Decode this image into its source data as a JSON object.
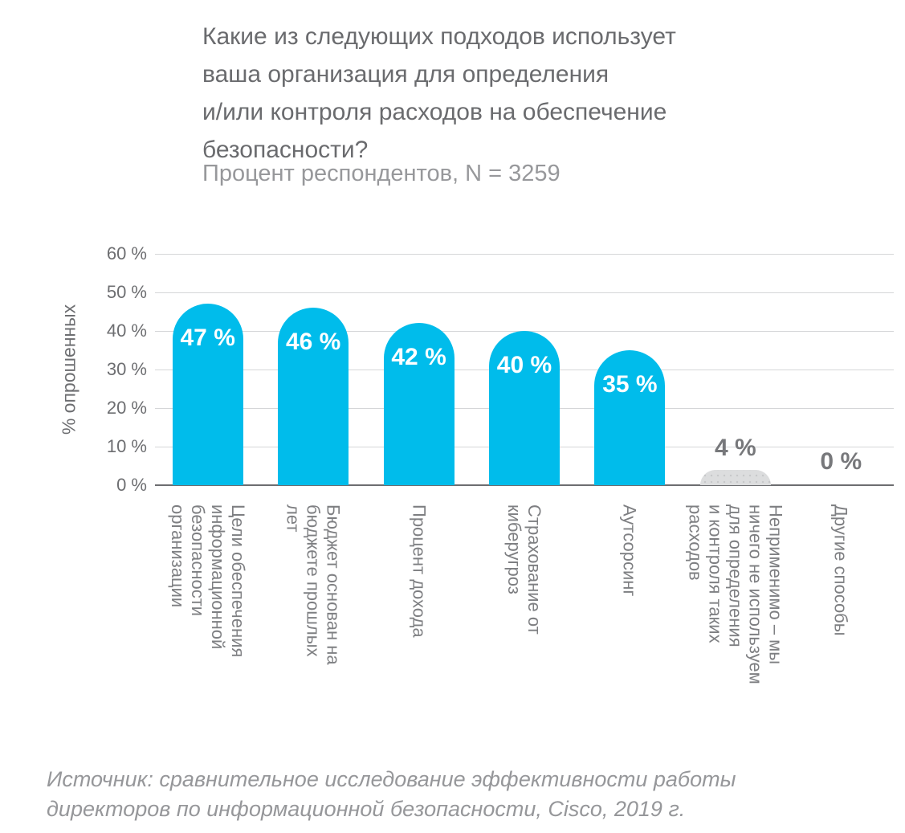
{
  "title": "Какие из следующих подходов использует\nваша организация для определения\nи/или контроля расходов на обеспечение\nбезопасности?",
  "subtitle": "Процент респондентов, N = 3259",
  "source": "Источник: сравнительное исследование эффективности работы\nдиректоров по информационной безопасности, Cisco, 2019 г.",
  "y_axis": {
    "label": "% опрошенных",
    "ticks": [
      {
        "value": 60,
        "label": "60 %"
      },
      {
        "value": 50,
        "label": "50 %"
      },
      {
        "value": 40,
        "label": "40 %"
      },
      {
        "value": 30,
        "label": "30 %"
      },
      {
        "value": 20,
        "label": "20 %"
      },
      {
        "value": 10,
        "label": "10 %"
      },
      {
        "value": 0,
        "label": "0 %"
      }
    ]
  },
  "colors": {
    "bar_blue": "#00bceb",
    "bar_gray": "#dcddde",
    "text_dark_gray": "#6d6e71",
    "text_light_gray": "#96979a",
    "gridline": "#d5d6d8",
    "value_label_on_bar": "#ffffff"
  },
  "chart_data": {
    "type": "bar",
    "title": "Какие из следующих подходов использует ваша организация для определения и/или контроля расходов на обеспечение безопасности?",
    "subtitle": "Процент респондентов, N = 3259",
    "ylabel": "% опрошенных",
    "xlabel": "",
    "ylim": [
      0,
      60
    ],
    "ytick_step": 10,
    "grid": true,
    "legend": false,
    "categories": [
      "Цели обеспечения информационной безопасности организации",
      "Бюджет основан на бюджете прошлых лет",
      "Процент дохода",
      "Страхование от киберугроз",
      "Аутсорсинг",
      "Неприменимо – мы ничего не используем для определения и контроля таких расходов",
      "Другие способы"
    ],
    "values": [
      47,
      46,
      42,
      40,
      35,
      4,
      0
    ],
    "source": "Источник: сравнительное исследование эффективности работы директоров по информационной безопасности, Cisco, 2019 г."
  },
  "display": {
    "value_labels": [
      "47 %",
      "46 %",
      "42 %",
      "40 %",
      "35 %",
      "4 %",
      "0 %"
    ],
    "bar_styles": [
      "blue",
      "blue",
      "blue",
      "blue",
      "blue",
      "gray",
      "none"
    ],
    "category_lines": [
      "Цели обеспечения\nинформационной\nбезопасности\nорганизации",
      "Бюджет основан на\nбюджете прошлых\nлет",
      "Процент дохода",
      "Страхование от\nкиберугроз",
      "Аутсорсинг",
      "Неприменимо – мы\nничего не используем\nдля определения\nи контроля таких\nрасходов",
      "Другие способы"
    ]
  }
}
